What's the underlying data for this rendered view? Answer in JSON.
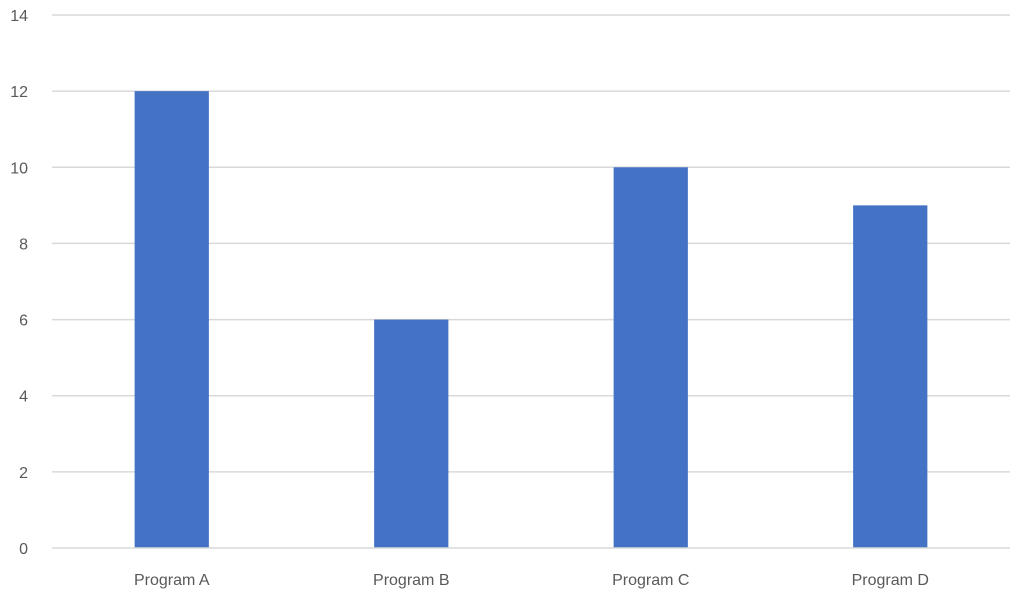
{
  "chart_data": {
    "type": "bar",
    "categories": [
      "Program A",
      "Program B",
      "Program C",
      "Program D"
    ],
    "values": [
      12,
      6,
      10,
      9
    ],
    "series": [
      {
        "values": [
          12,
          6,
          10,
          9
        ],
        "color": "#4472C4"
      }
    ],
    "ylim": [
      0,
      14
    ],
    "y_ticks": [
      0,
      2,
      4,
      6,
      8,
      10,
      12,
      14
    ],
    "title": "",
    "xlabel": "",
    "ylabel": "",
    "grid": true,
    "legend": "none",
    "colors": {
      "bar": "#4472C4",
      "grid": "#d9d9d9",
      "tick_text": "#595959"
    }
  }
}
